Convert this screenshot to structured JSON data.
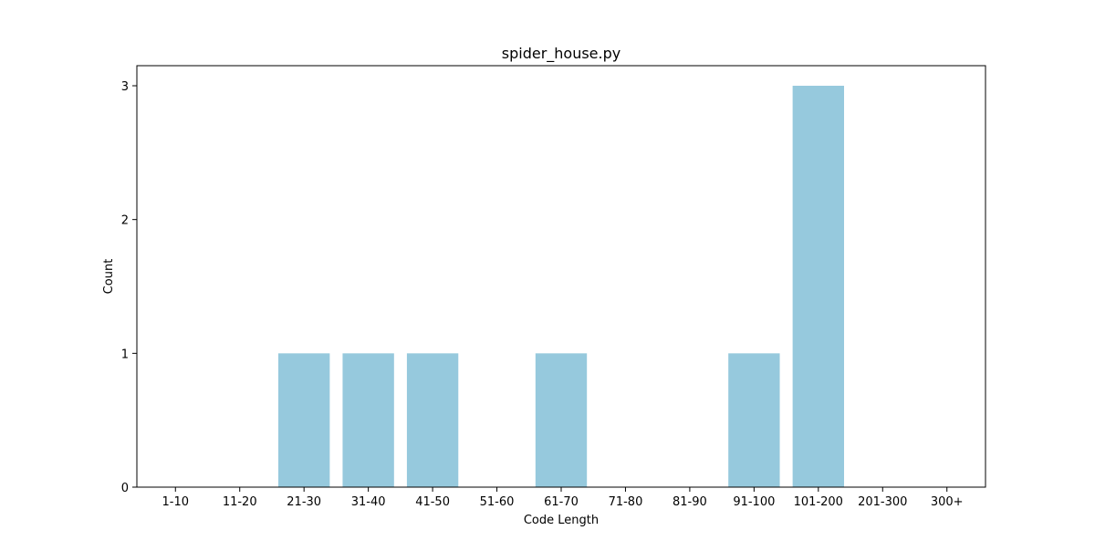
{
  "chart_data": {
    "type": "bar",
    "title": "spider_house.py",
    "xlabel": "Code Length",
    "ylabel": "Count",
    "categories": [
      "1-10",
      "11-20",
      "21-30",
      "31-40",
      "41-50",
      "51-60",
      "61-70",
      "71-80",
      "81-90",
      "91-100",
      "101-200",
      "201-300",
      "300+"
    ],
    "values": [
      0,
      0,
      1,
      1,
      1,
      0,
      1,
      0,
      0,
      1,
      3,
      0,
      0
    ],
    "ylim": [
      0,
      3.15
    ],
    "yticks": [
      0,
      1,
      2,
      3
    ],
    "grid": false,
    "bar_color": "#96c9dd"
  }
}
